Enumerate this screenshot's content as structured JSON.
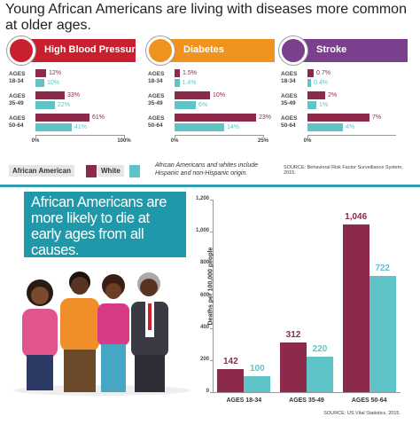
{
  "title": "Young African Americans are living with diseases more common at older ages.",
  "legend_note": "African Americans and whites include Hispanic and non-Hispanic origin.",
  "top_source": "SOURCE: Behavioral Risk Factor Surveillance System, 2015.",
  "callout": "African Americans are more likely to die at early ages from all causes.",
  "chart_data": [
    {
      "type": "hbar",
      "title": "High Blood Pressure",
      "color": "#c8202f",
      "categories": [
        "AGES 18-34",
        "AGES 35-49",
        "AGES 50-64"
      ],
      "series": [
        {
          "name": "African American",
          "color": "#8b2a4a",
          "values": [
            12,
            33,
            61
          ],
          "value_labels": [
            "12%",
            "33%",
            "61%"
          ]
        },
        {
          "name": "White",
          "color": "#5ec4c8",
          "values": [
            10,
            22,
            41
          ],
          "value_labels": [
            "10%",
            "22%",
            "41%"
          ]
        }
      ],
      "xlim": [
        0,
        100
      ],
      "xticks": [
        {
          "value": 0,
          "label": "0%"
        },
        {
          "value": 100,
          "label": "100%"
        }
      ]
    },
    {
      "type": "hbar",
      "title": "Diabetes",
      "color": "#f0931e",
      "categories": [
        "AGES 18-34",
        "AGES 35-49",
        "AGES 50-64"
      ],
      "series": [
        {
          "name": "African American",
          "color": "#8b2a4a",
          "values": [
            1.5,
            10,
            23
          ],
          "value_labels": [
            "1.5%",
            "10%",
            "23%"
          ]
        },
        {
          "name": "White",
          "color": "#5ec4c8",
          "values": [
            1.4,
            6,
            14
          ],
          "value_labels": [
            "1.4%",
            "6%",
            "14%"
          ]
        }
      ],
      "xlim": [
        0,
        25
      ],
      "xticks": [
        {
          "value": 0,
          "label": "0%"
        },
        {
          "value": 25,
          "label": "25%"
        }
      ]
    },
    {
      "type": "hbar",
      "title": "Stroke",
      "color": "#7b3f8e",
      "categories": [
        "AGES 18-34",
        "AGES 35-49",
        "AGES 50-64"
      ],
      "series": [
        {
          "name": "African American",
          "color": "#8b2a4a",
          "values": [
            0.7,
            2,
            7
          ],
          "value_labels": [
            "0.7%",
            "2%",
            "7%"
          ]
        },
        {
          "name": "White",
          "color": "#5ec4c8",
          "values": [
            0.4,
            1,
            4
          ],
          "value_labels": [
            "0.4%",
            "1%",
            "4%"
          ]
        }
      ],
      "xlim": [
        0,
        10
      ],
      "xticks": [
        {
          "value": 0,
          "label": "0%"
        }
      ]
    },
    {
      "type": "bar",
      "ylabel": "Deaths per 100,000 people",
      "source": "SOURCE: US Vital Statistics, 2015.",
      "categories": [
        "AGES 18-34",
        "AGES 35-49",
        "AGES 50-64"
      ],
      "series": [
        {
          "name": "African American",
          "color": "#8b2a4a",
          "values": [
            142,
            312,
            1046
          ],
          "value_labels": [
            "142",
            "312",
            "1,046"
          ]
        },
        {
          "name": "White",
          "color": "#5ec4c8",
          "values": [
            100,
            220,
            722
          ],
          "value_labels": [
            "100",
            "220",
            "722"
          ]
        }
      ],
      "ylim": [
        0,
        1200
      ],
      "yticks": [
        0,
        200,
        400,
        600,
        800,
        {
          "value": 1000,
          "label": "1,000"
        },
        {
          "value": 1200,
          "label": "1,200"
        }
      ]
    }
  ]
}
